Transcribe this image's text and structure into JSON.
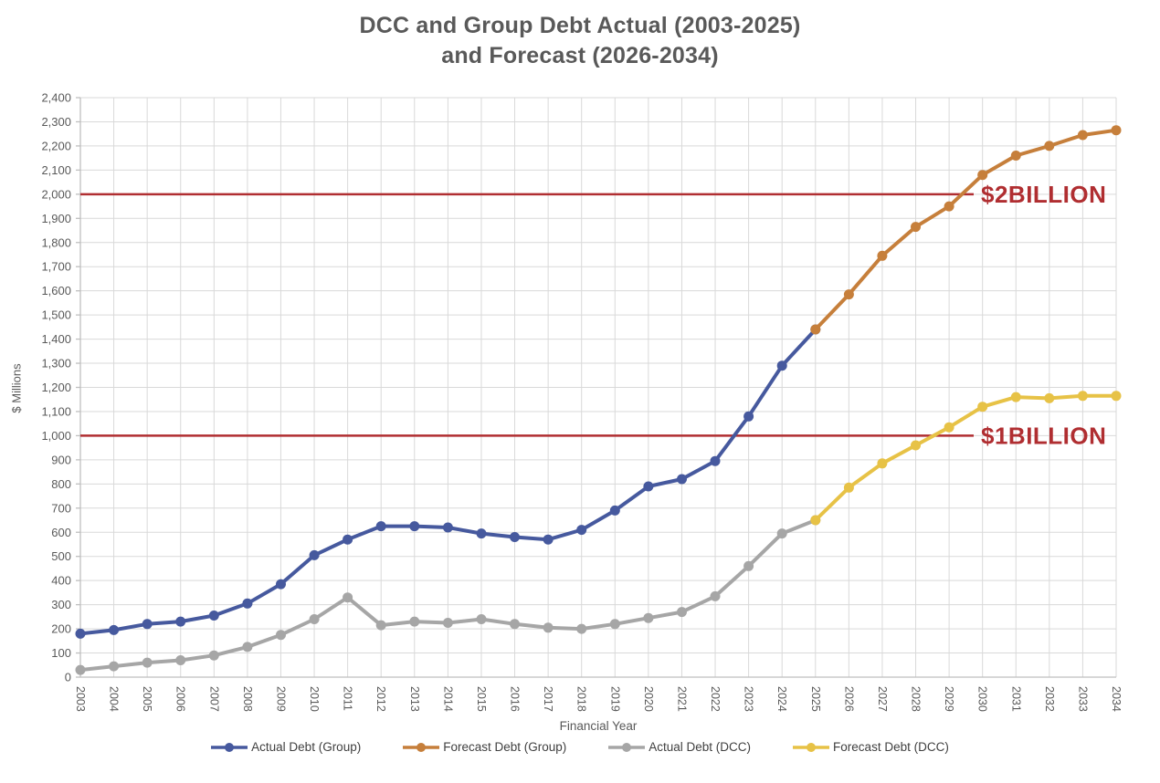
{
  "chart_data": {
    "type": "line",
    "title_lines": [
      "DCC and Group Debt Actual (2003-2025)",
      "and Forecast (2026-2034)"
    ],
    "xlabel": "Financial Year",
    "ylabel": "$ Millions",
    "ylim": [
      0,
      2400
    ],
    "ytick_step": 100,
    "grid": true,
    "legend_position": "bottom",
    "years": [
      2003,
      2004,
      2005,
      2006,
      2007,
      2008,
      2009,
      2010,
      2011,
      2012,
      2013,
      2014,
      2015,
      2016,
      2017,
      2018,
      2019,
      2020,
      2021,
      2022,
      2023,
      2024,
      2025,
      2026,
      2027,
      2028,
      2029,
      2030,
      2031,
      2032,
      2033,
      2034
    ],
    "colors": {
      "grid": "#D9D9D9",
      "axis": "#BFBFBF",
      "tick_text": "#595959",
      "title_text": "#595959",
      "legend_text": "#404040"
    },
    "series": [
      {
        "name": "Actual Debt (Group)",
        "color": "#46599E",
        "points": [
          [
            2003,
            180
          ],
          [
            2004,
            195
          ],
          [
            2005,
            220
          ],
          [
            2006,
            230
          ],
          [
            2007,
            255
          ],
          [
            2008,
            305
          ],
          [
            2009,
            385
          ],
          [
            2010,
            505
          ],
          [
            2011,
            570
          ],
          [
            2012,
            625
          ],
          [
            2013,
            625
          ],
          [
            2014,
            620
          ],
          [
            2015,
            595
          ],
          [
            2016,
            580
          ],
          [
            2017,
            570
          ],
          [
            2018,
            610
          ],
          [
            2019,
            690
          ],
          [
            2020,
            790
          ],
          [
            2021,
            820
          ],
          [
            2022,
            895
          ],
          [
            2023,
            1080
          ],
          [
            2024,
            1290
          ],
          [
            2025,
            1440
          ]
        ]
      },
      {
        "name": "Forecast Debt (Group)",
        "color": "#C67F3B",
        "points": [
          [
            2025,
            1440
          ],
          [
            2026,
            1585
          ],
          [
            2027,
            1745
          ],
          [
            2028,
            1865
          ],
          [
            2029,
            1950
          ],
          [
            2030,
            2080
          ],
          [
            2031,
            2160
          ],
          [
            2032,
            2200
          ],
          [
            2033,
            2245
          ],
          [
            2034,
            2265
          ]
        ]
      },
      {
        "name": "Actual Debt (DCC)",
        "color": "#A6A6A6",
        "points": [
          [
            2003,
            30
          ],
          [
            2004,
            45
          ],
          [
            2005,
            60
          ],
          [
            2006,
            70
          ],
          [
            2007,
            90
          ],
          [
            2008,
            125
          ],
          [
            2009,
            175
          ],
          [
            2010,
            240
          ],
          [
            2011,
            330
          ],
          [
            2012,
            215
          ],
          [
            2013,
            230
          ],
          [
            2014,
            225
          ],
          [
            2015,
            240
          ],
          [
            2016,
            220
          ],
          [
            2017,
            205
          ],
          [
            2018,
            200
          ],
          [
            2019,
            220
          ],
          [
            2020,
            245
          ],
          [
            2021,
            270
          ],
          [
            2022,
            335
          ],
          [
            2023,
            460
          ],
          [
            2024,
            595
          ],
          [
            2025,
            650
          ]
        ]
      },
      {
        "name": "Forecast Debt (DCC)",
        "color": "#E7C246",
        "points": [
          [
            2025,
            650
          ],
          [
            2026,
            785
          ],
          [
            2027,
            885
          ],
          [
            2028,
            960
          ],
          [
            2029,
            1035
          ],
          [
            2030,
            1120
          ],
          [
            2031,
            1160
          ],
          [
            2032,
            1155
          ],
          [
            2033,
            1165
          ],
          [
            2034,
            1165
          ]
        ]
      }
    ],
    "draw_order": [
      2,
      3,
      0,
      1
    ],
    "reference_lines": [
      {
        "value": 2000,
        "label": "$2BILLION",
        "color": "#B02E31"
      },
      {
        "value": 1000,
        "label": "$1BILLION",
        "color": "#B02E31"
      }
    ]
  }
}
